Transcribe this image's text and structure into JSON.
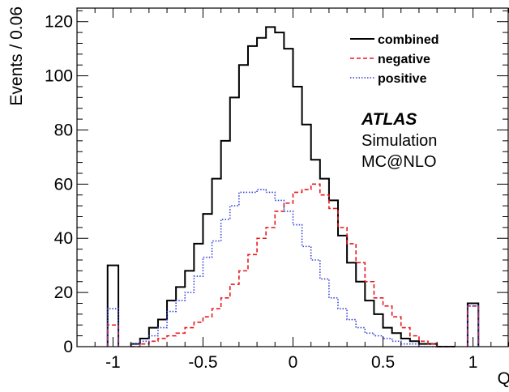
{
  "chart_data": {
    "type": "histogram",
    "ylabel": "Events / 0.06",
    "xlabel": "Q",
    "xlim": [
      -1.2,
      1.2
    ],
    "ylim": [
      0,
      125
    ],
    "xticks": [
      -1,
      -0.5,
      0,
      0.5,
      1
    ],
    "xtick_labels": [
      "-1",
      "-0.5",
      "0",
      "0.5",
      "1"
    ],
    "yticks": [
      0,
      20,
      40,
      60,
      80,
      100,
      120
    ],
    "ytick_labels": [
      "0",
      "20",
      "40",
      "60",
      "80",
      "100",
      "120"
    ],
    "grid": false,
    "legend_position": "top-right",
    "annotations": [
      "ATLAS",
      "Simulation",
      "MC@NLO"
    ],
    "special_bins": {
      "at_minus_1": {
        "x_range": [
          -1.03,
          -0.97
        ],
        "combined": 30,
        "negative": 8,
        "positive": 14
      },
      "at_plus_1": {
        "x_range": [
          0.97,
          1.03
        ],
        "combined": 16,
        "negative": 15,
        "positive": 15
      }
    },
    "series": [
      {
        "name": "combined",
        "color": "#000000",
        "dash": "solid",
        "x_edges": [
          -0.9,
          -0.85,
          -0.8,
          -0.75,
          -0.7,
          -0.65,
          -0.6,
          -0.55,
          -0.5,
          -0.45,
          -0.4,
          -0.35,
          -0.3,
          -0.25,
          -0.2,
          -0.15,
          -0.1,
          -0.05,
          0.0,
          0.05,
          0.1,
          0.15,
          0.2,
          0.25,
          0.3,
          0.35,
          0.4,
          0.45,
          0.5,
          0.55,
          0.6,
          0.65,
          0.7,
          0.75,
          0.8,
          0.85,
          0.9
        ],
        "values": [
          1,
          3,
          7,
          10,
          17,
          22,
          28,
          38,
          49,
          62,
          76,
          92,
          104,
          111,
          114,
          118,
          116,
          110,
          96,
          82,
          69,
          62,
          54,
          41,
          31,
          24,
          17,
          12,
          7,
          5,
          3,
          2,
          1,
          1,
          0,
          0
        ]
      },
      {
        "name": "negative",
        "color": "#e8191e",
        "dash": "dashed",
        "x_edges": [
          -0.9,
          -0.85,
          -0.8,
          -0.75,
          -0.7,
          -0.65,
          -0.6,
          -0.55,
          -0.5,
          -0.45,
          -0.4,
          -0.35,
          -0.3,
          -0.25,
          -0.2,
          -0.15,
          -0.1,
          -0.05,
          0.0,
          0.05,
          0.1,
          0.15,
          0.2,
          0.25,
          0.3,
          0.35,
          0.4,
          0.45,
          0.5,
          0.55,
          0.6,
          0.65,
          0.7,
          0.75,
          0.8,
          0.85,
          0.9
        ],
        "values": [
          0,
          1,
          2,
          3,
          4,
          5,
          7,
          9,
          11,
          14,
          18,
          23,
          28,
          34,
          40,
          44,
          50,
          53,
          57,
          58,
          60,
          56,
          51,
          44,
          38,
          31,
          24,
          18,
          15,
          11,
          7,
          4,
          2,
          1,
          0,
          0
        ]
      },
      {
        "name": "positive",
        "color": "#3340d8",
        "dash": "dotted",
        "x_edges": [
          -0.9,
          -0.85,
          -0.8,
          -0.75,
          -0.7,
          -0.65,
          -0.6,
          -0.55,
          -0.5,
          -0.45,
          -0.4,
          -0.35,
          -0.3,
          -0.25,
          -0.2,
          -0.15,
          -0.1,
          -0.05,
          0.0,
          0.05,
          0.1,
          0.15,
          0.2,
          0.25,
          0.3,
          0.35,
          0.4,
          0.45,
          0.5,
          0.55,
          0.6,
          0.65,
          0.7,
          0.75,
          0.8,
          0.85,
          0.9
        ],
        "values": [
          1,
          2,
          4,
          7,
          13,
          17,
          20,
          26,
          33,
          39,
          47,
          52,
          57,
          57,
          58,
          57,
          54,
          50,
          45,
          37,
          32,
          25,
          18,
          14,
          10,
          7,
          5,
          4,
          3,
          2,
          1,
          1,
          0,
          0,
          0,
          0
        ]
      }
    ]
  }
}
